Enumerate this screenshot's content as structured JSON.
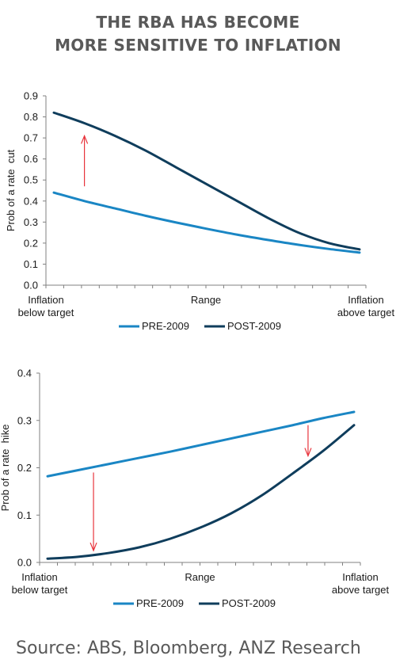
{
  "title_line1": "THE RBA HAS BECOME",
  "title_line2": "MORE SENSITIVE TO INFLATION",
  "source": "Source: ABS, Bloomberg, ANZ Research",
  "colors": {
    "pre": "#1a86c4",
    "post": "#0f3d5c",
    "arrow": "#e8343c",
    "axis": "#808080"
  },
  "chart_data": [
    {
      "type": "line",
      "title": "",
      "ylabel": "Prob of a rate  cut",
      "xlabel": "",
      "x_tick_labels": [
        {
          "lines": [
            "Inflation",
            "below target"
          ],
          "x": 0
        },
        {
          "lines": [
            "Range"
          ],
          "x": 0.5
        },
        {
          "lines": [
            "Inflation",
            "above target"
          ],
          "x": 1
        }
      ],
      "ylim": [
        0,
        0.9
      ],
      "y_ticks": [
        "0.0",
        "0.1",
        "0.2",
        "0.3",
        "0.4",
        "0.5",
        "0.6",
        "0.7",
        "0.8",
        "0.9"
      ],
      "legend_position": "bottom",
      "series": [
        {
          "name": "PRE-2009",
          "color": "#1a86c4",
          "x": [
            0,
            0.1,
            0.2,
            0.3,
            0.4,
            0.5,
            0.6,
            0.7,
            0.8,
            0.9,
            1.0
          ],
          "y": [
            0.44,
            0.4,
            0.365,
            0.33,
            0.298,
            0.268,
            0.24,
            0.215,
            0.192,
            0.172,
            0.155
          ]
        },
        {
          "name": "POST-2009",
          "color": "#0f3d5c",
          "x": [
            0,
            0.1,
            0.2,
            0.3,
            0.4,
            0.5,
            0.6,
            0.7,
            0.8,
            0.9,
            1.0
          ],
          "y": [
            0.82,
            0.77,
            0.71,
            0.64,
            0.56,
            0.48,
            0.4,
            0.32,
            0.25,
            0.2,
            0.17
          ]
        }
      ],
      "arrows": [
        {
          "x": 0.1,
          "from": 0.47,
          "to": 0.71,
          "direction": "up"
        }
      ]
    },
    {
      "type": "line",
      "title": "",
      "ylabel": "Prob of a rate  hike",
      "xlabel": "",
      "x_tick_labels": [
        {
          "lines": [
            "Inflation",
            "below target"
          ],
          "x": 0
        },
        {
          "lines": [
            "Range"
          ],
          "x": 0.5
        },
        {
          "lines": [
            "Inflation",
            "above target"
          ],
          "x": 1
        }
      ],
      "ylim": [
        0,
        0.4
      ],
      "y_ticks": [
        "0.0",
        "0.1",
        "0.2",
        "0.3",
        "0.4"
      ],
      "legend_position": "bottom",
      "series": [
        {
          "name": "PRE-2009",
          "color": "#1a86c4",
          "x": [
            0,
            0.1,
            0.2,
            0.3,
            0.4,
            0.5,
            0.6,
            0.7,
            0.8,
            0.9,
            1.0
          ],
          "y": [
            0.182,
            0.195,
            0.208,
            0.221,
            0.234,
            0.248,
            0.262,
            0.276,
            0.29,
            0.305,
            0.318
          ]
        },
        {
          "name": "POST-2009",
          "color": "#0f3d5c",
          "x": [
            0,
            0.1,
            0.2,
            0.3,
            0.4,
            0.5,
            0.6,
            0.7,
            0.8,
            0.9,
            1.0
          ],
          "y": [
            0.008,
            0.012,
            0.02,
            0.032,
            0.05,
            0.074,
            0.104,
            0.142,
            0.188,
            0.236,
            0.29
          ]
        }
      ],
      "arrows": [
        {
          "x": 0.15,
          "from": 0.19,
          "to": 0.025,
          "direction": "down"
        },
        {
          "x": 0.85,
          "from": 0.29,
          "to": 0.225,
          "direction": "down"
        }
      ]
    }
  ]
}
